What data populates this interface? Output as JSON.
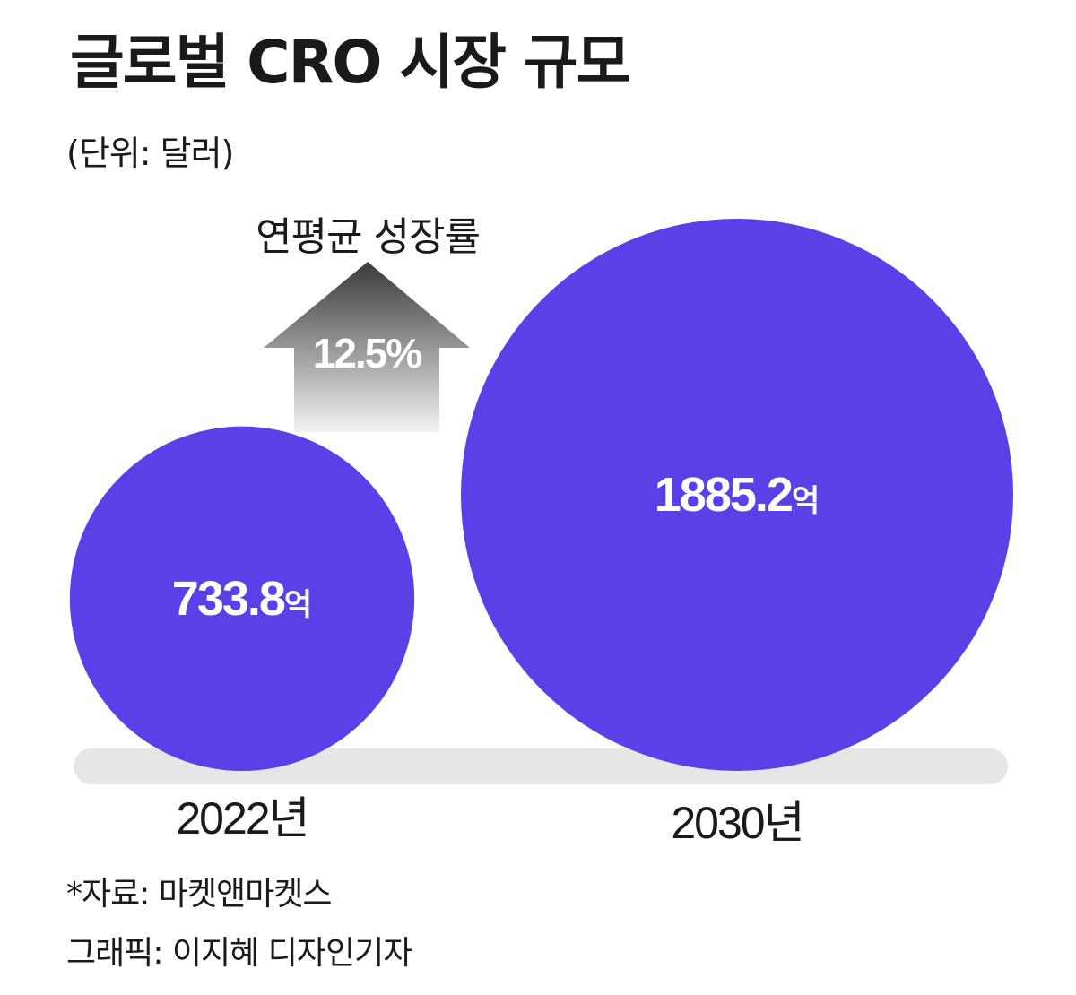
{
  "chart_data": {
    "type": "bubble",
    "title": "글로벌 CRO 시장 규모",
    "subtitle": "(단위: 달러)",
    "categories": [
      "2022년",
      "2030년"
    ],
    "values": [
      733.8,
      1885.2
    ],
    "value_unit": "억",
    "annotation": {
      "label": "연평균 성장률",
      "value": "12.5%"
    },
    "colors": {
      "bubble": "#5a40e6",
      "baseline": "#e6e6e6",
      "arrow_top": "#3a3a3a",
      "arrow_bottom": "#f2f2f2"
    }
  },
  "footer": {
    "source": "*자료: 마켓앤마켓스",
    "credit": "그래픽: 이지혜 디자인기자"
  }
}
